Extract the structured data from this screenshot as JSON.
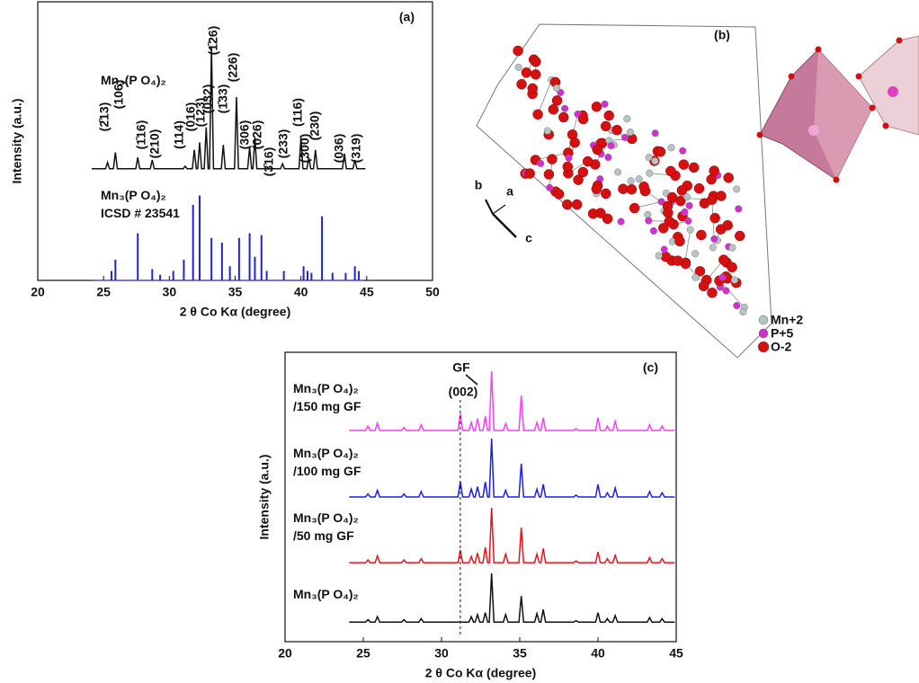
{
  "chart_data": [
    {
      "type": "line",
      "panel": "(a)",
      "xlabel": "2 θ Co Kα (degree)",
      "ylabel": "Intensity (a.u.)",
      "xlim": [
        20,
        50
      ],
      "xticks": [
        20,
        25,
        30,
        35,
        40,
        45,
        50
      ],
      "ylim": [
        0,
        100
      ],
      "x": [
        24.1,
        25.15,
        25.3,
        25.45,
        25.75,
        25.9,
        26.05,
        27.45,
        27.6,
        27.75,
        28.55,
        28.7,
        28.85,
        31.05,
        31.2,
        31.35,
        31.75,
        31.9,
        32.05,
        32.15,
        32.3,
        32.45,
        32.65,
        32.8,
        32.95,
        33.05,
        33.2,
        33.35,
        33.95,
        34.1,
        34.25,
        34.95,
        35.1,
        35.25,
        35.95,
        36.1,
        36.25,
        36.35,
        36.5,
        36.65,
        38.45,
        38.6,
        38.75,
        39.85,
        40.0,
        40.15,
        40.45,
        40.6,
        40.75,
        40.95,
        41.1,
        41.25,
        43.15,
        43.3,
        43.45,
        43.95,
        44.1,
        44.25,
        44.9
      ],
      "series": [
        {
          "name": "Mn₃(P O₄)₂",
          "color": "#111111",
          "kind": "line",
          "values": [
            3,
            3,
            8,
            3,
            3,
            16,
            3,
            3,
            12,
            3,
            3,
            10,
            3,
            3,
            5,
            3,
            3,
            18,
            3,
            3,
            24,
            3,
            3,
            36,
            3,
            3,
            100,
            3,
            3,
            22,
            3,
            3,
            60,
            3,
            3,
            20,
            3,
            3,
            28,
            3,
            3,
            7,
            3,
            3,
            28,
            3,
            3,
            12,
            3,
            3,
            18,
            3,
            3,
            15,
            3,
            3,
            10,
            3,
            3
          ]
        },
        {
          "name": "Mn₃(P O₄)₂ ICSD # 23541",
          "color": "#2323d2",
          "kind": "stick",
          "x": [
            25.6,
            25.9,
            27.6,
            28.7,
            29.3,
            30.3,
            31.1,
            31.8,
            32.3,
            33.2,
            34.0,
            34.6,
            35.3,
            36.1,
            36.5,
            37.0,
            37.4,
            38.7,
            40.2,
            40.5,
            40.8,
            41.6,
            42.4,
            43.4,
            44.1,
            44.4
          ],
          "values": [
            10,
            22,
            50,
            12,
            6,
            10,
            22,
            80,
            90,
            45,
            40,
            15,
            45,
            50,
            25,
            48,
            10,
            10,
            15,
            10,
            8,
            68,
            8,
            8,
            15,
            10
          ]
        }
      ],
      "annotations": [
        "(2̄13)",
        "(106)",
        "(1̄16)",
        "(210)",
        "(114)",
        "(016)",
        "(123)",
        "(032)",
        "(1̄26)",
        "(1̄33)",
        "(226)",
        "(306)",
        "(026)",
        "(3̄16)",
        "(233)",
        "(116)",
        "(300)",
        "(230)",
        "(036)",
        "(319)"
      ]
    },
    {
      "type": "line",
      "panel": "(c)",
      "xlabel": "2 θ Co Kα (degree)",
      "ylabel": "Intensity (a.u.)",
      "xlim": [
        20,
        45
      ],
      "xticks": [
        20,
        25,
        30,
        35,
        40,
        45
      ],
      "ylim": [
        0,
        100
      ],
      "x": [
        24.1,
        25.15,
        25.3,
        25.45,
        25.75,
        25.9,
        26.05,
        27.45,
        27.6,
        27.75,
        28.55,
        28.7,
        28.85,
        31.05,
        31.2,
        31.35,
        31.75,
        31.9,
        32.05,
        32.15,
        32.3,
        32.45,
        32.65,
        32.8,
        32.95,
        33.05,
        33.2,
        33.35,
        33.95,
        34.1,
        34.25,
        34.95,
        35.1,
        35.25,
        35.95,
        36.1,
        36.25,
        36.35,
        36.5,
        36.65,
        38.45,
        38.6,
        38.75,
        39.85,
        40.0,
        40.15,
        40.45,
        40.6,
        40.75,
        40.95,
        41.1,
        41.25,
        43.15,
        43.3,
        43.45,
        43.95,
        44.1,
        44.25,
        44.9
      ],
      "series": [
        {
          "name": "Mn₃(P O₄)₂ /150 mg GF",
          "color": "#ff3cff",
          "values": [
            3,
            3,
            10,
            3,
            3,
            15,
            3,
            3,
            8,
            3,
            3,
            12,
            3,
            3,
            30,
            3,
            3,
            16,
            3,
            3,
            22,
            3,
            3,
            26,
            3,
            3,
            100,
            3,
            3,
            14,
            3,
            3,
            60,
            3,
            3,
            16,
            3,
            3,
            24,
            3,
            3,
            6,
            3,
            3,
            24,
            3,
            3,
            10,
            3,
            3,
            18,
            3,
            3,
            12,
            3,
            3,
            10,
            3,
            3
          ]
        },
        {
          "name": "Mn₃(P O₄)₂ /100 mg GF",
          "color": "#1e1ee6",
          "values": [
            3,
            3,
            8,
            3,
            3,
            14,
            3,
            3,
            8,
            3,
            3,
            12,
            3,
            3,
            28,
            3,
            3,
            16,
            3,
            3,
            20,
            3,
            3,
            28,
            3,
            3,
            100,
            3,
            3,
            14,
            3,
            3,
            58,
            3,
            3,
            16,
            3,
            3,
            24,
            3,
            3,
            6,
            3,
            3,
            24,
            3,
            3,
            10,
            3,
            3,
            18,
            3,
            3,
            12,
            3,
            3,
            10,
            3,
            3
          ]
        },
        {
          "name": "Mn₃(P O₄)₂ /50 mg GF",
          "color": "#e8141c",
          "values": [
            3,
            3,
            8,
            3,
            3,
            15,
            3,
            3,
            8,
            3,
            3,
            10,
            3,
            3,
            25,
            3,
            3,
            14,
            3,
            3,
            20,
            3,
            3,
            30,
            3,
            3,
            100,
            3,
            3,
            18,
            3,
            3,
            65,
            3,
            3,
            18,
            3,
            3,
            28,
            3,
            3,
            6,
            3,
            3,
            22,
            3,
            3,
            10,
            3,
            3,
            16,
            3,
            3,
            12,
            3,
            3,
            10,
            3,
            3
          ]
        },
        {
          "name": "Mn₃(P O₄)₂",
          "color": "#111111",
          "values": [
            3,
            3,
            8,
            3,
            3,
            14,
            3,
            3,
            8,
            3,
            3,
            10,
            3,
            3,
            4,
            3,
            3,
            14,
            3,
            3,
            18,
            3,
            3,
            22,
            3,
            3,
            100,
            3,
            3,
            18,
            3,
            3,
            55,
            3,
            3,
            20,
            3,
            3,
            28,
            3,
            3,
            6,
            3,
            3,
            22,
            3,
            3,
            10,
            3,
            3,
            16,
            3,
            3,
            12,
            3,
            3,
            10,
            3,
            3
          ]
        }
      ],
      "reference_line": 31.2,
      "annotations": [
        "GF",
        "(002)"
      ]
    }
  ],
  "structure": {
    "panel": "(b)",
    "axes": [
      "b",
      "a",
      "c"
    ],
    "legend": [
      "Mn+2",
      "P+5",
      "O-2"
    ]
  }
}
